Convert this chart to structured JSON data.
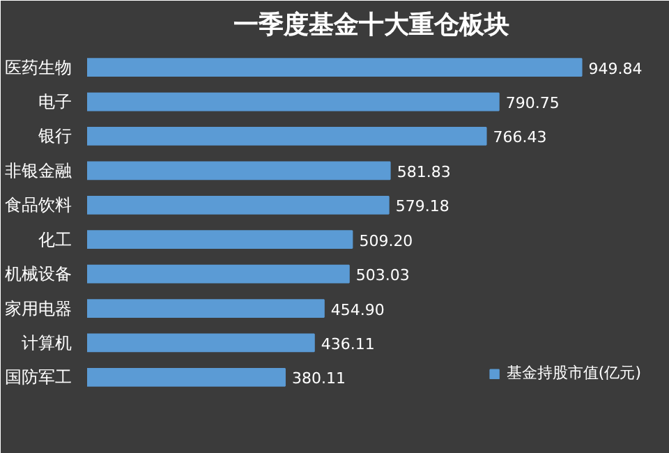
{
  "chart_data": {
    "type": "bar",
    "orientation": "horizontal",
    "title": "一季度基金十大重仓板块",
    "categories": [
      "医药生物",
      "电子",
      "银行",
      "非银金融",
      "食品饮料",
      "化工",
      "机械设备",
      "家用电器",
      "计算机",
      "国防军工"
    ],
    "series": [
      {
        "name": "基金持股市值(亿元)",
        "color": "#5b9bd5",
        "values": [
          949.84,
          790.75,
          766.43,
          581.83,
          579.18,
          509.2,
          503.03,
          454.9,
          436.11,
          380.11
        ],
        "value_labels": [
          "949.84",
          "790.75",
          "766.43",
          "581.83",
          "579.18",
          "509.20",
          "503.03",
          "454.90",
          "436.11",
          "380.11"
        ]
      }
    ],
    "legend": "bottom right",
    "grid": false
  }
}
